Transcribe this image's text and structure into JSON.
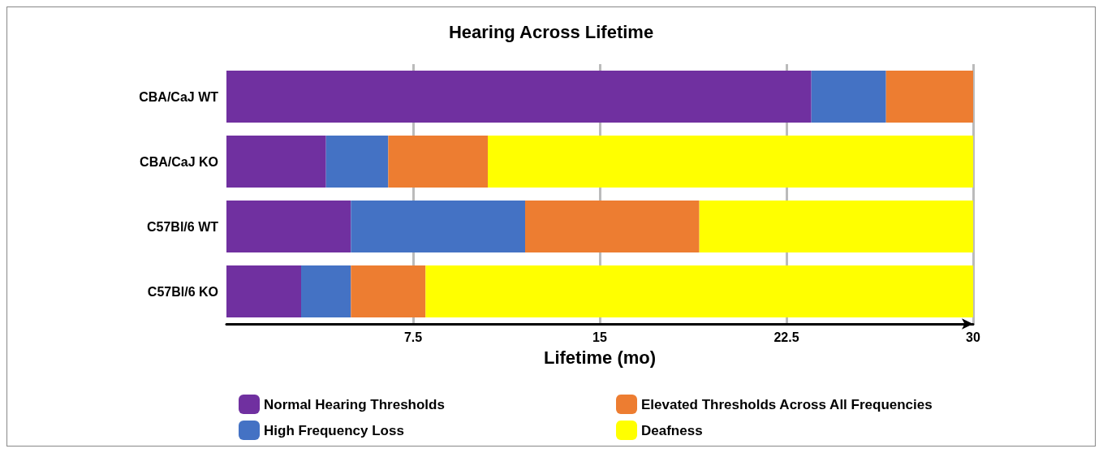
{
  "chart_data": {
    "type": "bar",
    "orientation": "horizontal",
    "stacked": true,
    "title": "Hearing Across Lifetime",
    "xlabel": "Lifetime (mo)",
    "categories": [
      "CBA/CaJ WT",
      "CBA/CaJ KO",
      "C57Bl/6 WT",
      "C57Bl/6 KO"
    ],
    "series": [
      {
        "name": "Normal Hearing Thresholds",
        "color": "#7030a0",
        "values": [
          23.5,
          4,
          5,
          3
        ]
      },
      {
        "name": "High Frequency Loss",
        "color": "#4472c4",
        "values": [
          3,
          2.5,
          7,
          2
        ]
      },
      {
        "name": "Elevated Thresholds Across All Frequencies",
        "color": "#ed7d31",
        "values": [
          3.5,
          4,
          7,
          3
        ]
      },
      {
        "name": "Deafness",
        "color": "#ffff00",
        "values": [
          0,
          19.5,
          11,
          22
        ]
      }
    ],
    "xlim": [
      0,
      30
    ],
    "xticks": [
      7.5,
      15,
      22.5,
      30
    ],
    "grid": "x",
    "legend": "bottom"
  }
}
